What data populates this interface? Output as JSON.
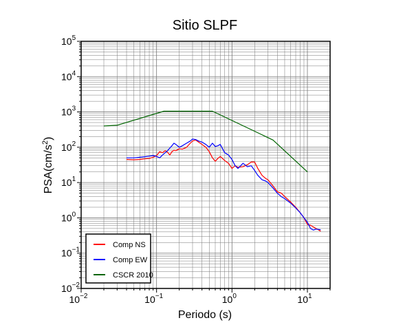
{
  "chart_data": {
    "type": "line",
    "title": "Sitio SLPF",
    "xlabel": "Periodo (s)",
    "ylabel_base": "PSA(cm/s",
    "ylabel_sup": "2",
    "ylabel_close": ")",
    "xscale": "log",
    "yscale": "log",
    "xlim": [
      0.01,
      20
    ],
    "ylim": [
      0.01,
      100000
    ],
    "grid": true,
    "legend_position": "bottom-left",
    "x_ticks": [
      {
        "base": "10",
        "exp": "−2",
        "value": 0.01
      },
      {
        "base": "10",
        "exp": "−1",
        "value": 0.1
      },
      {
        "base": "10",
        "exp": "0",
        "value": 1
      },
      {
        "base": "10",
        "exp": "1",
        "value": 10
      }
    ],
    "y_ticks": [
      {
        "base": "10",
        "exp": "−2",
        "value": 0.01
      },
      {
        "base": "10",
        "exp": "−1",
        "value": 0.1
      },
      {
        "base": "10",
        "exp": "0",
        "value": 1
      },
      {
        "base": "10",
        "exp": "1",
        "value": 10
      },
      {
        "base": "10",
        "exp": "2",
        "value": 100
      },
      {
        "base": "10",
        "exp": "3",
        "value": 1000
      },
      {
        "base": "10",
        "exp": "4",
        "value": 10000
      },
      {
        "base": "10",
        "exp": "5",
        "value": 100000
      }
    ],
    "series": [
      {
        "name": "Comp NS",
        "color": "#ff0000",
        "x": [
          0.04,
          0.05,
          0.06,
          0.07,
          0.08,
          0.09,
          0.1,
          0.11,
          0.12,
          0.13,
          0.14,
          0.15,
          0.16,
          0.17,
          0.18,
          0.2,
          0.22,
          0.25,
          0.28,
          0.3,
          0.33,
          0.36,
          0.4,
          0.45,
          0.5,
          0.55,
          0.6,
          0.65,
          0.7,
          0.8,
          0.9,
          1.0,
          1.1,
          1.2,
          1.4,
          1.6,
          1.8,
          2.0,
          2.2,
          2.5,
          2.8,
          3.0,
          3.5,
          4.0,
          4.5,
          5.0,
          6.0,
          7.0,
          8.0,
          9.0,
          10.0,
          11.0,
          12.0,
          13.0,
          15.0
        ],
        "y": [
          45,
          44,
          45,
          47,
          48,
          52,
          58,
          75,
          70,
          80,
          72,
          60,
          75,
          82,
          80,
          90,
          88,
          100,
          130,
          150,
          160,
          140,
          120,
          100,
          75,
          50,
          40,
          48,
          55,
          42,
          35,
          25,
          30,
          27,
          28,
          32,
          38,
          38,
          25,
          16,
          13,
          12,
          8,
          5.5,
          5.0,
          4.0,
          2.8,
          2.0,
          1.4,
          1.0,
          0.65,
          0.62,
          0.55,
          0.5,
          0.42
        ]
      },
      {
        "name": "Comp EW",
        "color": "#0000ff",
        "x": [
          0.04,
          0.05,
          0.06,
          0.07,
          0.08,
          0.09,
          0.1,
          0.11,
          0.12,
          0.13,
          0.14,
          0.15,
          0.16,
          0.17,
          0.18,
          0.2,
          0.22,
          0.25,
          0.28,
          0.3,
          0.33,
          0.36,
          0.4,
          0.45,
          0.5,
          0.55,
          0.6,
          0.65,
          0.7,
          0.8,
          0.9,
          1.0,
          1.1,
          1.2,
          1.4,
          1.6,
          1.8,
          2.0,
          2.2,
          2.5,
          2.8,
          3.0,
          3.5,
          4.0,
          4.5,
          5.0,
          6.0,
          7.0,
          8.0,
          9.0,
          10.0,
          11.0,
          12.0,
          13.0,
          15.0
        ],
        "y": [
          50,
          50,
          52,
          54,
          56,
          58,
          55,
          50,
          60,
          70,
          80,
          95,
          110,
          130,
          120,
          100,
          110,
          130,
          150,
          170,
          165,
          150,
          140,
          120,
          100,
          130,
          105,
          110,
          120,
          70,
          60,
          45,
          30,
          25,
          35,
          28,
          30,
          22,
          16,
          12,
          11,
          10,
          7,
          5,
          4,
          3.5,
          2.6,
          1.9,
          1.4,
          1.0,
          0.75,
          0.5,
          0.45,
          0.48,
          0.46
        ]
      },
      {
        "name": "CSCR 2010",
        "color": "#006400",
        "x": [
          0.02,
          0.03,
          0.125,
          0.55,
          3.5,
          10.0
        ],
        "y": [
          400,
          420,
          1050,
          1050,
          160,
          20
        ]
      }
    ]
  },
  "colors": {
    "background": "#ffffff",
    "axis": "#000000",
    "grid": "#777777"
  }
}
